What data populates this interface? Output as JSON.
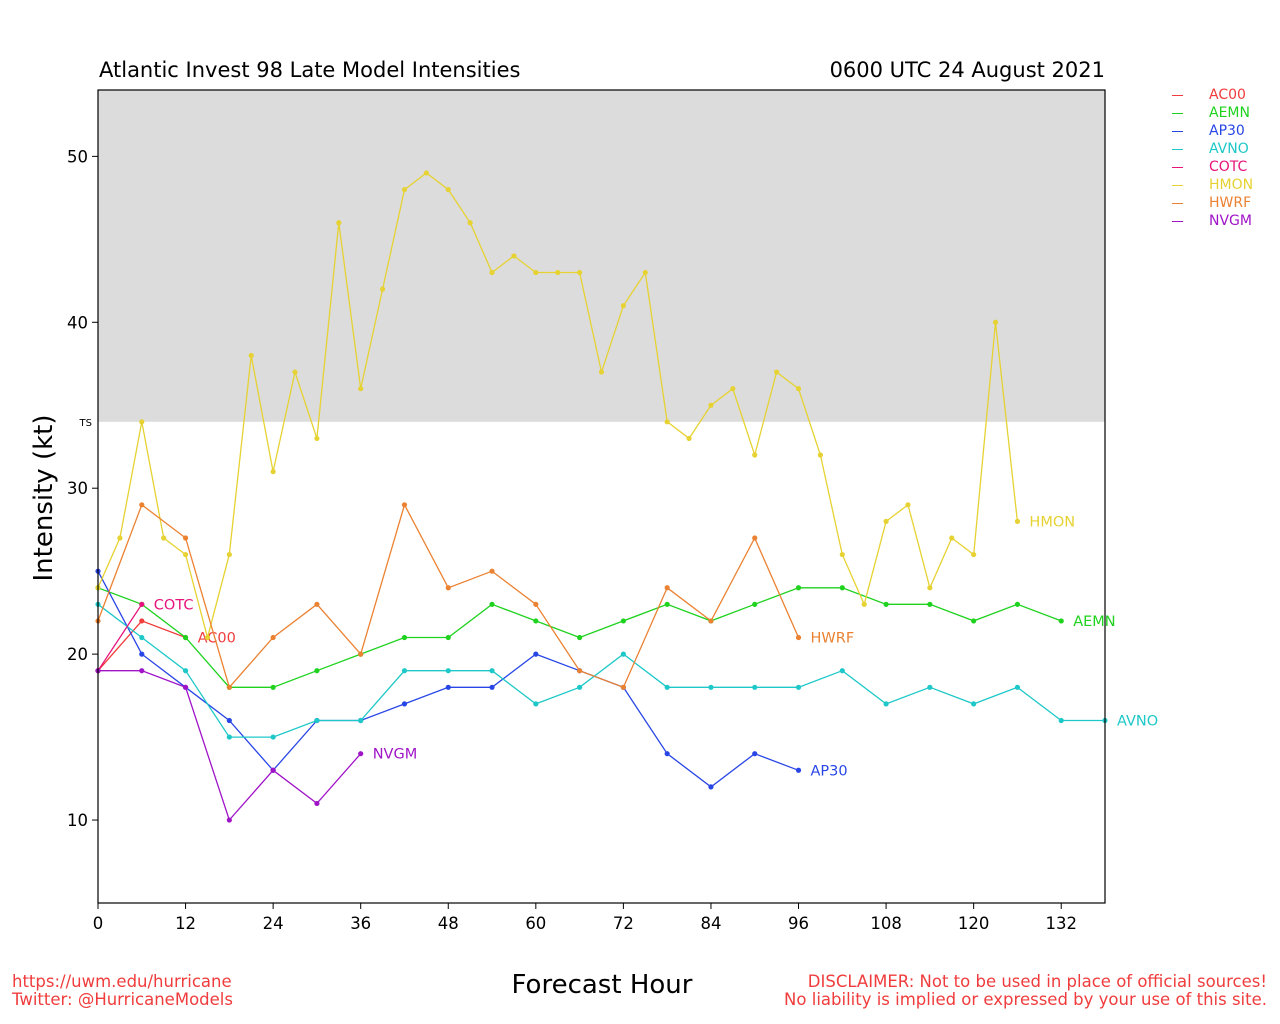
{
  "header": {
    "title_left": "Atlantic Invest 98 Late Model Intensities",
    "title_right": "0600 UTC 24 August 2021"
  },
  "footer": {
    "url": "https://uwm.edu/hurricane",
    "twitter": "Twitter: @HurricaneModels",
    "disclaimer_line1": "DISCLAIMER: Not to be used in place of official sources!",
    "disclaimer_line2": "No liability is implied or expressed by your use of this site."
  },
  "chart_data": {
    "type": "line",
    "xlabel": "Forecast Hour",
    "ylabel": "Intensity (kt)",
    "xlim": [
      0,
      138
    ],
    "ylim": [
      5,
      54
    ],
    "xticks": [
      0,
      12,
      24,
      36,
      48,
      60,
      72,
      84,
      96,
      108,
      120,
      132
    ],
    "yticks": [
      10,
      20,
      30,
      40,
      50
    ],
    "threshold": {
      "label": "TS",
      "value": 34,
      "shade_color": "#dcdcdc"
    },
    "legend_position": "right-top",
    "series": [
      {
        "name": "AC00",
        "color": "#f03c3c",
        "label_hour": 12,
        "points": [
          [
            0,
            19
          ],
          [
            6,
            22
          ],
          [
            12,
            21
          ]
        ]
      },
      {
        "name": "AEMN",
        "color": "#1ed21e",
        "label_hour": 132,
        "points": [
          [
            0,
            24
          ],
          [
            6,
            23
          ],
          [
            12,
            21
          ],
          [
            18,
            18
          ],
          [
            24,
            18
          ],
          [
            30,
            19
          ],
          [
            36,
            20
          ],
          [
            42,
            21
          ],
          [
            48,
            21
          ],
          [
            54,
            23
          ],
          [
            60,
            22
          ],
          [
            66,
            21
          ],
          [
            72,
            22
          ],
          [
            78,
            23
          ],
          [
            84,
            22
          ],
          [
            90,
            23
          ],
          [
            96,
            24
          ],
          [
            102,
            24
          ],
          [
            108,
            23
          ],
          [
            114,
            23
          ],
          [
            120,
            22
          ],
          [
            126,
            23
          ],
          [
            132,
            22
          ]
        ]
      },
      {
        "name": "AP30",
        "color": "#2846e6",
        "label_hour": 96,
        "points": [
          [
            0,
            25
          ],
          [
            6,
            20
          ],
          [
            12,
            18
          ],
          [
            18,
            16
          ],
          [
            24,
            13
          ],
          [
            30,
            16
          ],
          [
            36,
            16
          ],
          [
            42,
            17
          ],
          [
            48,
            18
          ],
          [
            54,
            18
          ],
          [
            60,
            20
          ],
          [
            66,
            19
          ],
          [
            72,
            18
          ],
          [
            78,
            14
          ],
          [
            84,
            12
          ],
          [
            90,
            14
          ],
          [
            96,
            13
          ]
        ]
      },
      {
        "name": "AVNO",
        "color": "#1ec8c8",
        "label_hour": 138,
        "points": [
          [
            0,
            23
          ],
          [
            6,
            21
          ],
          [
            12,
            19
          ],
          [
            18,
            15
          ],
          [
            24,
            15
          ],
          [
            30,
            16
          ],
          [
            36,
            16
          ],
          [
            42,
            19
          ],
          [
            48,
            19
          ],
          [
            54,
            19
          ],
          [
            60,
            17
          ],
          [
            66,
            18
          ],
          [
            72,
            20
          ],
          [
            78,
            18
          ],
          [
            84,
            18
          ],
          [
            90,
            18
          ],
          [
            96,
            18
          ],
          [
            102,
            19
          ],
          [
            108,
            17
          ],
          [
            114,
            18
          ],
          [
            120,
            17
          ],
          [
            126,
            18
          ],
          [
            132,
            16
          ],
          [
            138,
            16
          ]
        ]
      },
      {
        "name": "COTC",
        "color": "#e6147a",
        "label_hour": 6,
        "points": [
          [
            0,
            19
          ],
          [
            6,
            23
          ]
        ]
      },
      {
        "name": "HMON",
        "color": "#e6d232",
        "label_hour": 126,
        "points": [
          [
            0,
            24
          ],
          [
            3,
            27
          ],
          [
            6,
            34
          ],
          [
            9,
            27
          ],
          [
            12,
            26
          ],
          [
            15,
            21
          ],
          [
            18,
            26
          ],
          [
            21,
            38
          ],
          [
            24,
            31
          ],
          [
            27,
            37
          ],
          [
            30,
            33
          ],
          [
            33,
            46
          ],
          [
            36,
            36
          ],
          [
            39,
            42
          ],
          [
            42,
            48
          ],
          [
            45,
            49
          ],
          [
            48,
            48
          ],
          [
            51,
            46
          ],
          [
            54,
            43
          ],
          [
            57,
            44
          ],
          [
            60,
            43
          ],
          [
            63,
            43
          ],
          [
            66,
            43
          ],
          [
            69,
            37
          ],
          [
            72,
            41
          ],
          [
            75,
            43
          ],
          [
            78,
            34
          ],
          [
            81,
            33
          ],
          [
            84,
            35
          ],
          [
            87,
            36
          ],
          [
            90,
            32
          ],
          [
            93,
            37
          ],
          [
            96,
            36
          ],
          [
            99,
            32
          ],
          [
            102,
            26
          ],
          [
            105,
            23
          ],
          [
            108,
            28
          ],
          [
            111,
            29
          ],
          [
            114,
            24
          ],
          [
            117,
            27
          ],
          [
            120,
            26
          ],
          [
            123,
            40
          ],
          [
            126,
            28
          ]
        ]
      },
      {
        "name": "HWRF",
        "color": "#eb8232",
        "label_hour": 96,
        "points": [
          [
            0,
            22
          ],
          [
            6,
            29
          ],
          [
            12,
            27
          ],
          [
            18,
            18
          ],
          [
            24,
            21
          ],
          [
            30,
            23
          ],
          [
            36,
            20
          ],
          [
            42,
            29
          ],
          [
            48,
            24
          ],
          [
            54,
            25
          ],
          [
            60,
            23
          ],
          [
            66,
            19
          ],
          [
            72,
            18
          ],
          [
            78,
            24
          ],
          [
            84,
            22
          ],
          [
            90,
            27
          ],
          [
            96,
            21
          ]
        ]
      },
      {
        "name": "NVGM",
        "color": "#a014c8",
        "label_hour": 36,
        "points": [
          [
            0,
            19
          ],
          [
            6,
            19
          ],
          [
            12,
            18
          ],
          [
            18,
            10
          ],
          [
            24,
            13
          ],
          [
            30,
            11
          ],
          [
            36,
            14
          ]
        ]
      }
    ]
  }
}
